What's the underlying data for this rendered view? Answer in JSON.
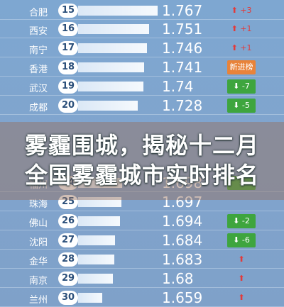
{
  "rankings": [
    {
      "city": "合肥",
      "rank": "15",
      "value": "1.767",
      "change": "+3",
      "dir": "up"
    },
    {
      "city": "西安",
      "rank": "16",
      "value": "1.751",
      "change": "+1",
      "dir": "up"
    },
    {
      "city": "南宁",
      "rank": "17",
      "value": "1.746",
      "change": "+1",
      "dir": "up"
    },
    {
      "city": "香港",
      "rank": "18",
      "value": "1.741",
      "change": "新进榜",
      "dir": "new"
    },
    {
      "city": "武汉",
      "rank": "19",
      "value": "1.74",
      "change": "-7",
      "dir": "down"
    },
    {
      "city": "成都",
      "rank": "20",
      "value": "1.728",
      "change": "-5",
      "dir": "down"
    },
    {
      "city": "福州",
      "rank": "24",
      "value": "1.698",
      "change": "",
      "dir": "down"
    },
    {
      "city": "珠海",
      "rank": "25",
      "value": "1.697",
      "change": "",
      "dir": "none"
    },
    {
      "city": "佛山",
      "rank": "26",
      "value": "1.694",
      "change": "-2",
      "dir": "down"
    },
    {
      "city": "沈阳",
      "rank": "27",
      "value": "1.684",
      "change": "-6",
      "dir": "down"
    },
    {
      "city": "金华",
      "rank": "28",
      "value": "1.683",
      "change": "",
      "dir": "up"
    },
    {
      "city": "南京",
      "rank": "29",
      "value": "1.68",
      "change": "",
      "dir": "up"
    },
    {
      "city": "兰州",
      "rank": "30",
      "value": "1.659",
      "change": "",
      "dir": "up"
    }
  ],
  "headline": {
    "line1": "雾霾围城，揭秘十二月",
    "line2": "全国雾霾城市实时排名"
  }
}
